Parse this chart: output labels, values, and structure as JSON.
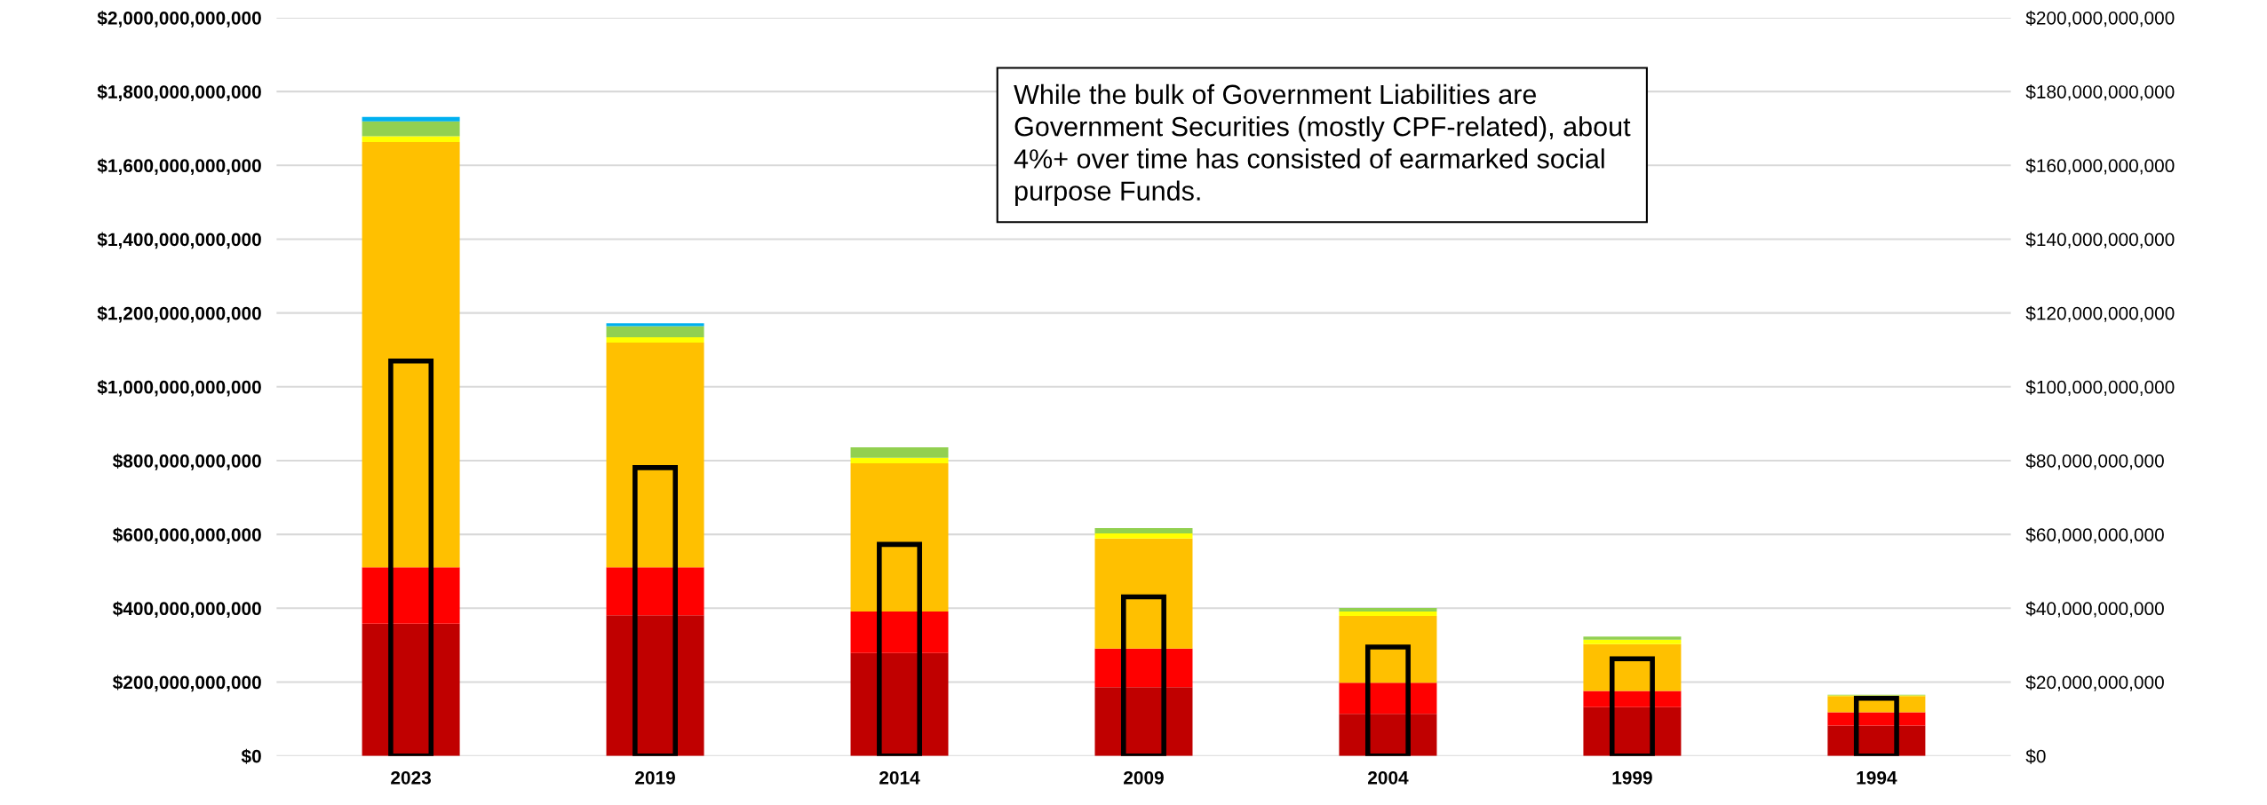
{
  "chart_data": {
    "type": "bar",
    "stacked": true,
    "categories": [
      "2023",
      "2019",
      "2014",
      "2009",
      "2004",
      "1999",
      "1994"
    ],
    "series": [
      {
        "color": "#c00000",
        "values": [
          358000000000,
          381000000000,
          279000000000,
          186000000000,
          114000000000,
          132000000000,
          82000000000
        ]
      },
      {
        "color": "#ff0000",
        "values": [
          153000000000,
          130000000000,
          112000000000,
          105000000000,
          84000000000,
          44000000000,
          36000000000
        ]
      },
      {
        "color": "#ffc000",
        "values": [
          1152000000000,
          609000000000,
          402000000000,
          298000000000,
          181000000000,
          127000000000,
          44000000000
        ]
      },
      {
        "color": "#ffff00",
        "values": [
          16000000000,
          14000000000,
          15000000000,
          14000000000,
          12000000000,
          12000000000,
          2000000000
        ]
      },
      {
        "color": "#92d050",
        "values": [
          40000000000,
          30000000000,
          28000000000,
          14000000000,
          10000000000,
          8000000000,
          2000000000
        ]
      },
      {
        "color": "#00b0f0",
        "values": [
          12000000000,
          8000000000,
          null,
          null,
          null,
          null,
          null
        ]
      },
      {
        "type": "bar",
        "axis": "y2",
        "color": "#000000",
        "values": [
          107000000000,
          78100000000,
          57300000000,
          43100000000,
          29500000000,
          26300000000,
          15600000000
        ]
      }
    ],
    "ylim": [
      0,
      2000000000000
    ],
    "yticks": [
      {
        "value": 0,
        "label": "$0"
      },
      {
        "value": 200000000000,
        "label": "$200,000,000,000"
      },
      {
        "value": 400000000000,
        "label": "$400,000,000,000"
      },
      {
        "value": 600000000000,
        "label": "$600,000,000,000"
      },
      {
        "value": 800000000000,
        "label": "$800,000,000,000"
      },
      {
        "value": 1000000000000,
        "label": "$1,000,000,000,000"
      },
      {
        "value": 1200000000000,
        "label": "$1,200,000,000,000"
      },
      {
        "value": 1400000000000,
        "label": "$1,400,000,000,000"
      },
      {
        "value": 1600000000000,
        "label": "$1,600,000,000,000"
      },
      {
        "value": 1800000000000,
        "label": "$1,800,000,000,000"
      },
      {
        "value": 2000000000000,
        "label": "$2,000,000,000,000"
      }
    ],
    "y2lim": [
      0,
      200000000000
    ],
    "y2ticks": [
      {
        "value": 0,
        "label": "$0"
      },
      {
        "value": 20000000000,
        "label": "$20,000,000,000"
      },
      {
        "value": 40000000000,
        "label": "$40,000,000,000"
      },
      {
        "value": 60000000000,
        "label": "$60,000,000,000"
      },
      {
        "value": 80000000000,
        "label": "$80,000,000,000"
      },
      {
        "value": 100000000000,
        "label": "$100,000,000,000"
      },
      {
        "value": 120000000000,
        "label": "$120,000,000,000"
      },
      {
        "value": 140000000000,
        "label": "$140,000,000,000"
      },
      {
        "value": 160000000000,
        "label": "$160,000,000,000"
      },
      {
        "value": 180000000000,
        "label": "$180,000,000,000"
      },
      {
        "value": 200000000000,
        "label": "$200,000,000,000"
      }
    ],
    "grid": "y",
    "annotations": [
      "While the bulk of Government Liabilities are\nGovernment Securities (mostly CPF-related), about\n4%+ over time has consisted of earmarked social\npurpose Funds."
    ]
  }
}
